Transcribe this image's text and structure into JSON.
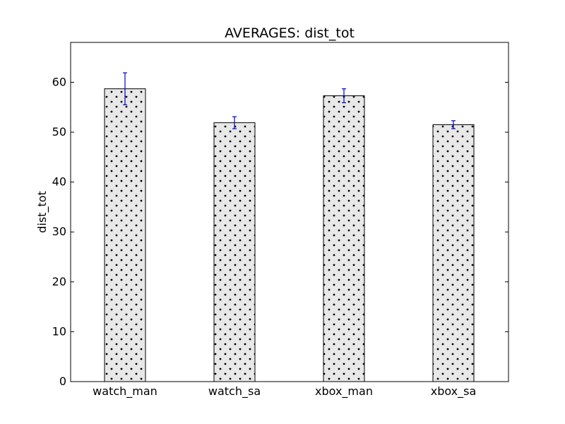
{
  "chart_data": {
    "type": "bar",
    "title": "AVERAGES: dist_tot",
    "xlabel": "",
    "ylabel": "dist_tot",
    "ylim": [
      0,
      68
    ],
    "yticks": [
      0,
      10,
      20,
      30,
      40,
      50,
      60
    ],
    "categories": [
      "watch_man",
      "watch_sa",
      "xbox_man",
      "xbox_sa"
    ],
    "values": [
      58.7,
      51.9,
      57.3,
      51.5
    ],
    "errors": [
      3.2,
      1.2,
      1.4,
      0.8
    ],
    "grid": false,
    "legend": "none",
    "colors": {
      "bar_fill": "#e8e8e8",
      "bar_edge": "#000000",
      "hatch": "#000000",
      "error_bar": "#0000cc",
      "axes": "#000000"
    }
  }
}
